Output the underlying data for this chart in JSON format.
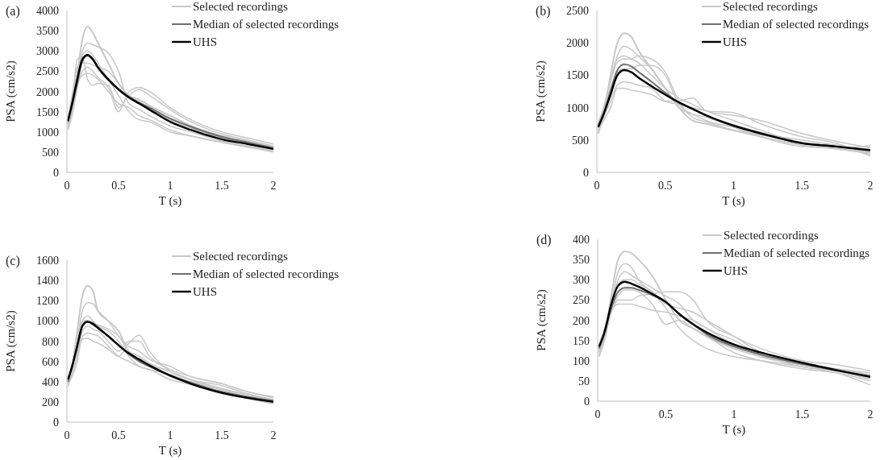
{
  "chart_data": [
    {
      "type": "line",
      "title": "(a)",
      "xlabel": "T (s)",
      "ylabel": "PSA (cm/s2)",
      "legend": "top right",
      "xlim": [
        0,
        2
      ],
      "xticks": [
        0,
        0.5,
        1,
        1.5,
        2
      ],
      "ylim": [
        0,
        4000
      ],
      "yticks": [
        0,
        500,
        1000,
        1500,
        2000,
        2500,
        3000,
        3500,
        4000
      ],
      "x": [
        0.01,
        0.05,
        0.1,
        0.15,
        0.2,
        0.25,
        0.3,
        0.4,
        0.5,
        0.6,
        0.7,
        0.8,
        1,
        1.2,
        1.5,
        1.75,
        2
      ],
      "series": [
        {
          "name": "Selected recordings",
          "color": "#c8c8c8",
          "values": [
            1100,
            1500,
            2400,
            3300,
            3600,
            3450,
            3200,
            2700,
            2200,
            1900,
            1800,
            1650,
            1400,
            1150,
            900,
            760,
            620
          ]
        },
        {
          "color": "#c8c8c8",
          "values": [
            1200,
            1700,
            2800,
            2850,
            2300,
            2150,
            2200,
            2150,
            1600,
            1900,
            2050,
            1900,
            1550,
            1250,
            950,
            800,
            650
          ]
        },
        {
          "color": "#c8c8c8",
          "values": [
            1300,
            1800,
            2500,
            3000,
            3200,
            3150,
            3100,
            2950,
            2500,
            1700,
            1550,
            1400,
            1150,
            1000,
            780,
            650,
            520
          ]
        },
        {
          "color": "#c8c8c8",
          "values": [
            1050,
            1400,
            2100,
            2500,
            2600,
            2500,
            2350,
            2100,
            1500,
            2000,
            2100,
            2000,
            1600,
            1300,
            1000,
            850,
            700
          ]
        },
        {
          "color": "#c8c8c8",
          "values": [
            1250,
            1600,
            2200,
            2400,
            2450,
            2400,
            2300,
            2000,
            1700,
            1600,
            1400,
            1300,
            1050,
            900,
            740,
            620,
            500
          ]
        },
        {
          "color": "#c8c8c8",
          "values": [
            1150,
            1550,
            2300,
            2900,
            3000,
            2900,
            2700,
            2300,
            1900,
            1500,
            1300,
            1250,
            1000,
            900,
            750,
            640,
            550
          ]
        },
        {
          "color": "#c8c8c8",
          "values": [
            1350,
            1900,
            2600,
            2700,
            2700,
            2650,
            2600,
            2500,
            2200,
            1900,
            1750,
            1600,
            1300,
            1100,
            850,
            720,
            580
          ]
        },
        {
          "name": "Median of selected recordings",
          "color": "#707070",
          "values": [
            1250,
            1650,
            2200,
            2750,
            2880,
            2780,
            2580,
            2280,
            2050,
            1870,
            1720,
            1600,
            1330,
            1130,
            880,
            740,
            600
          ]
        },
        {
          "name": "UHS",
          "color": "#000000",
          "values": [
            1270,
            1700,
            2300,
            2800,
            2900,
            2800,
            2600,
            2300,
            2050,
            1850,
            1700,
            1550,
            1250,
            1050,
            820,
            700,
            580
          ]
        }
      ]
    },
    {
      "type": "line",
      "title": "(b)",
      "xlabel": "T (s)",
      "ylabel": "PSA (cm/s2)",
      "legend": "top right",
      "xlim": [
        0,
        2
      ],
      "xticks": [
        0,
        0.5,
        1,
        1.5,
        2
      ],
      "ylim": [
        0,
        2500
      ],
      "yticks": [
        0,
        500,
        1000,
        1500,
        2000,
        2500
      ],
      "x": [
        0.01,
        0.05,
        0.1,
        0.15,
        0.2,
        0.25,
        0.3,
        0.4,
        0.5,
        0.6,
        0.7,
        0.8,
        1,
        1.2,
        1.5,
        1.75,
        2
      ],
      "series": [
        {
          "name": "Selected recordings",
          "color": "#c8c8c8",
          "values": [
            600,
            900,
            1500,
            2000,
            2150,
            2100,
            1900,
            1600,
            1300,
            1000,
            800,
            750,
            650,
            580,
            450,
            400,
            300
          ]
        },
        {
          "color": "#c8c8c8",
          "values": [
            760,
            1000,
            1400,
            1800,
            1950,
            1900,
            1800,
            1600,
            1300,
            1000,
            900,
            850,
            700,
            550,
            400,
            380,
            410
          ]
        },
        {
          "color": "#c8c8c8",
          "values": [
            650,
            800,
            1000,
            1300,
            1300,
            1270,
            1250,
            1200,
            1100,
            1100,
            1150,
            950,
            880,
            800,
            600,
            480,
            380
          ]
        },
        {
          "color": "#c8c8c8",
          "values": [
            680,
            1000,
            1400,
            1700,
            1750,
            1750,
            1800,
            1750,
            1550,
            1100,
            850,
            780,
            650,
            550,
            420,
            360,
            300
          ]
        },
        {
          "color": "#c8c8c8",
          "values": [
            600,
            950,
            1300,
            1550,
            1600,
            1600,
            1650,
            1650,
            1500,
            1050,
            900,
            800,
            700,
            600,
            500,
            420,
            320
          ]
        },
        {
          "color": "#c8c8c8",
          "values": [
            640,
            850,
            1100,
            1350,
            1400,
            1380,
            1350,
            1300,
            1100,
            1050,
            1000,
            950,
            920,
            750,
            550,
            450,
            250
          ]
        },
        {
          "color": "#c8c8c8",
          "values": [
            780,
            1000,
            1450,
            1750,
            1800,
            1750,
            1700,
            1500,
            1300,
            1150,
            1050,
            950,
            800,
            650,
            450,
            380,
            280
          ]
        },
        {
          "name": "Median of selected recordings",
          "color": "#707070",
          "values": [
            720,
            920,
            1250,
            1580,
            1670,
            1640,
            1560,
            1400,
            1230,
            1080,
            980,
            880,
            730,
            610,
            460,
            400,
            350
          ]
        },
        {
          "name": "UHS",
          "color": "#000000",
          "values": [
            700,
            900,
            1200,
            1500,
            1580,
            1550,
            1470,
            1330,
            1200,
            1080,
            980,
            880,
            720,
            600,
            450,
            400,
            340
          ]
        }
      ]
    },
    {
      "type": "line",
      "title": "(c)",
      "xlabel": "T (s)",
      "ylabel": "PSA (cm/s2)",
      "legend": "top right",
      "xlim": [
        0,
        2
      ],
      "xticks": [
        0,
        0.5,
        1,
        1.5,
        2
      ],
      "ylim": [
        0,
        1600
      ],
      "yticks": [
        0,
        200,
        400,
        600,
        800,
        1000,
        1200,
        1400,
        1600
      ],
      "x": [
        0.01,
        0.05,
        0.1,
        0.15,
        0.2,
        0.25,
        0.3,
        0.4,
        0.5,
        0.6,
        0.7,
        0.8,
        1,
        1.2,
        1.5,
        1.75,
        2
      ],
      "series": [
        {
          "name": "Selected recordings",
          "color": "#c8c8c8",
          "values": [
            380,
            550,
            900,
            1250,
            1350,
            1300,
            1100,
            1000,
            900,
            700,
            650,
            580,
            500,
            420,
            330,
            270,
            220
          ]
        },
        {
          "color": "#c8c8c8",
          "values": [
            400,
            500,
            800,
            1100,
            1180,
            1170,
            1100,
            1000,
            850,
            750,
            700,
            620,
            550,
            450,
            380,
            300,
            240
          ]
        },
        {
          "color": "#c8c8c8",
          "values": [
            420,
            520,
            700,
            820,
            830,
            800,
            780,
            720,
            650,
            780,
            860,
            700,
            500,
            420,
            360,
            280,
            220
          ]
        },
        {
          "color": "#c8c8c8",
          "values": [
            350,
            480,
            650,
            900,
            950,
            920,
            900,
            800,
            700,
            800,
            800,
            650,
            520,
            450,
            380,
            300,
            250
          ]
        },
        {
          "color": "#c8c8c8",
          "values": [
            400,
            550,
            850,
            1000,
            1050,
            1000,
            950,
            900,
            800,
            650,
            550,
            520,
            470,
            400,
            320,
            250,
            200
          ]
        },
        {
          "color": "#c8c8c8",
          "values": [
            380,
            450,
            600,
            850,
            880,
            870,
            850,
            750,
            650,
            600,
            550,
            520,
            420,
            370,
            280,
            230,
            180
          ]
        },
        {
          "color": "#c8c8c8",
          "values": [
            430,
            580,
            850,
            1000,
            1000,
            980,
            960,
            920,
            850,
            700,
            620,
            580,
            450,
            380,
            300,
            240,
            190
          ]
        },
        {
          "name": "Median of selected recordings",
          "color": "#707070",
          "values": [
            400,
            550,
            760,
            960,
            1000,
            980,
            940,
            850,
            760,
            670,
            600,
            550,
            460,
            390,
            300,
            250,
            210
          ]
        },
        {
          "name": "UHS",
          "color": "#000000",
          "values": [
            420,
            550,
            750,
            950,
            990,
            970,
            930,
            850,
            760,
            680,
            620,
            560,
            460,
            380,
            290,
            240,
            200
          ]
        }
      ]
    },
    {
      "type": "line",
      "title": "(d)",
      "xlabel": "T (s)",
      "ylabel": "PSA (cm/s2)",
      "legend": "top right",
      "xlim": [
        0,
        2
      ],
      "xticks": [
        0,
        0.5,
        1,
        1.5,
        2
      ],
      "ylim": [
        0,
        400
      ],
      "yticks": [
        0,
        50,
        100,
        150,
        200,
        250,
        300,
        350,
        400
      ],
      "x": [
        0.01,
        0.05,
        0.1,
        0.15,
        0.2,
        0.25,
        0.3,
        0.4,
        0.5,
        0.6,
        0.7,
        0.8,
        1,
        1.2,
        1.5,
        1.75,
        2
      ],
      "series": [
        {
          "name": "Selected recordings",
          "color": "#c8c8c8",
          "values": [
            120,
            160,
            260,
            350,
            370,
            365,
            350,
            310,
            250,
            200,
            180,
            160,
            130,
            110,
            90,
            75,
            55
          ]
        },
        {
          "color": "#c8c8c8",
          "values": [
            110,
            150,
            240,
            320,
            340,
            330,
            300,
            270,
            240,
            230,
            220,
            200,
            160,
            120,
            95,
            80,
            65
          ]
        },
        {
          "color": "#c8c8c8",
          "values": [
            130,
            160,
            220,
            250,
            250,
            250,
            260,
            265,
            270,
            270,
            250,
            200,
            160,
            130,
            100,
            90,
            75
          ]
        },
        {
          "color": "#c8c8c8",
          "values": [
            140,
            180,
            230,
            260,
            275,
            275,
            270,
            240,
            190,
            200,
            180,
            160,
            120,
            100,
            80,
            70,
            50
          ]
        },
        {
          "color": "#c8c8c8",
          "values": [
            125,
            170,
            250,
            290,
            300,
            300,
            290,
            270,
            230,
            180,
            150,
            130,
            110,
            100,
            85,
            70,
            40
          ]
        },
        {
          "color": "#c8c8c8",
          "values": [
            115,
            150,
            220,
            240,
            240,
            240,
            235,
            225,
            220,
            210,
            200,
            180,
            150,
            115,
            85,
            75,
            60
          ]
        },
        {
          "color": "#c8c8c8",
          "values": [
            135,
            170,
            240,
            300,
            320,
            310,
            300,
            280,
            260,
            240,
            200,
            180,
            140,
            110,
            90,
            80,
            70
          ]
        },
        {
          "name": "Median of selected recordings",
          "color": "#707070",
          "values": [
            130,
            170,
            230,
            270,
            280,
            280,
            275,
            262,
            245,
            215,
            190,
            165,
            135,
            115,
            92,
            76,
            62
          ]
        },
        {
          "name": "UHS",
          "color": "#000000",
          "values": [
            135,
            170,
            240,
            285,
            295,
            290,
            283,
            265,
            245,
            215,
            190,
            170,
            140,
            120,
            95,
            77,
            60
          ]
        }
      ]
    }
  ]
}
